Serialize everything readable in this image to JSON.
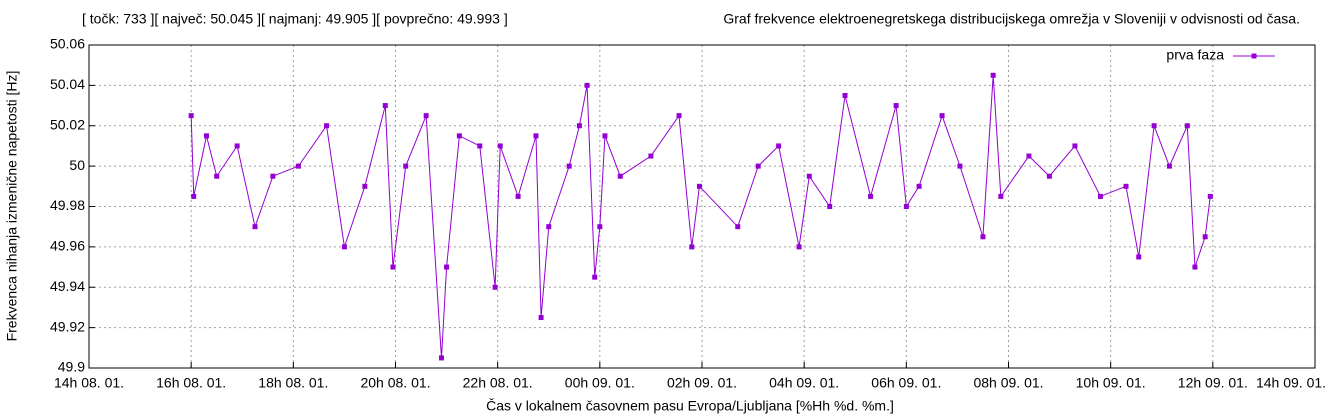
{
  "chart_data": {
    "type": "line",
    "stats": "[ točk: 733 ][ največ: 50.045 ][ najmanj: 49.905 ][ povprečno: 49.993 ]",
    "title": "Graf frekvence elektroenegretskega distribucijskega omrežja v Sloveniji v odvisnosti od časa.",
    "x_label": "Čas v lokalnem časovnem pasu Evropa/Ljubljana [%Hh %d. %m.]",
    "y_label": "Frekvenca nihanja izmenične napetosti [Hz]",
    "xlim": [
      14,
      38
    ],
    "xticks": [
      {
        "value": 14,
        "label": "14h 08. 01."
      },
      {
        "value": 16,
        "label": "16h 08. 01."
      },
      {
        "value": 18,
        "label": "18h 08. 01."
      },
      {
        "value": 20,
        "label": "20h 08. 01."
      },
      {
        "value": 22,
        "label": "22h 08. 01."
      },
      {
        "value": 24,
        "label": "00h 09. 01."
      },
      {
        "value": 26,
        "label": "02h 09. 01."
      },
      {
        "value": 28,
        "label": "04h 09. 01."
      },
      {
        "value": 30,
        "label": "06h 09. 01."
      },
      {
        "value": 32,
        "label": "08h 09. 01."
      },
      {
        "value": 34,
        "label": "10h 09. 01."
      },
      {
        "value": 36,
        "label": "12h 09. 01."
      },
      {
        "value": 38,
        "label": "14h 09. 01."
      }
    ],
    "ylim": [
      49.9,
      50.06
    ],
    "yticks": [
      49.9,
      49.92,
      49.94,
      49.96,
      49.98,
      50,
      50.02,
      50.04,
      50.06
    ],
    "grid": true,
    "legend": "top-right",
    "x": [
      16.0,
      16.05,
      16.3,
      16.5,
      16.9,
      17.25,
      17.6,
      18.1,
      18.65,
      19.0,
      19.4,
      19.8,
      19.95,
      20.2,
      20.6,
      20.9,
      21.0,
      21.25,
      21.65,
      21.95,
      22.05,
      22.4,
      22.75,
      22.85,
      23.0,
      23.4,
      23.6,
      23.75,
      23.9,
      24.0,
      24.1,
      24.4,
      25.0,
      25.55,
      25.8,
      25.95,
      26.7,
      27.1,
      27.5,
      27.9,
      28.1,
      28.5,
      28.8,
      29.3,
      29.8,
      30.0,
      30.25,
      30.7,
      31.05,
      31.5,
      31.7,
      31.85,
      32.4,
      32.8,
      33.3,
      33.8,
      34.3,
      34.55,
      34.85,
      35.15,
      35.5,
      35.65,
      35.85,
      35.95
    ],
    "series": [
      {
        "name": "prva faza",
        "color": "#9400d3",
        "values": [
          50.025,
          49.985,
          50.015,
          49.995,
          50.01,
          49.97,
          49.995,
          50.0,
          50.02,
          49.96,
          49.99,
          50.03,
          49.95,
          50.0,
          50.025,
          49.905,
          49.95,
          50.015,
          50.01,
          49.94,
          50.01,
          49.985,
          50.015,
          49.925,
          49.97,
          50.0,
          50.02,
          50.04,
          49.945,
          49.97,
          50.015,
          49.995,
          50.005,
          50.025,
          49.96,
          49.99,
          49.97,
          50.0,
          50.01,
          49.96,
          49.995,
          49.98,
          50.035,
          49.985,
          50.03,
          49.98,
          49.99,
          50.025,
          50.0,
          49.965,
          50.045,
          49.985,
          50.005,
          49.995,
          50.01,
          49.985,
          49.99,
          49.955,
          50.02,
          50.0,
          50.02,
          49.95,
          49.965,
          49.985
        ]
      }
    ]
  }
}
